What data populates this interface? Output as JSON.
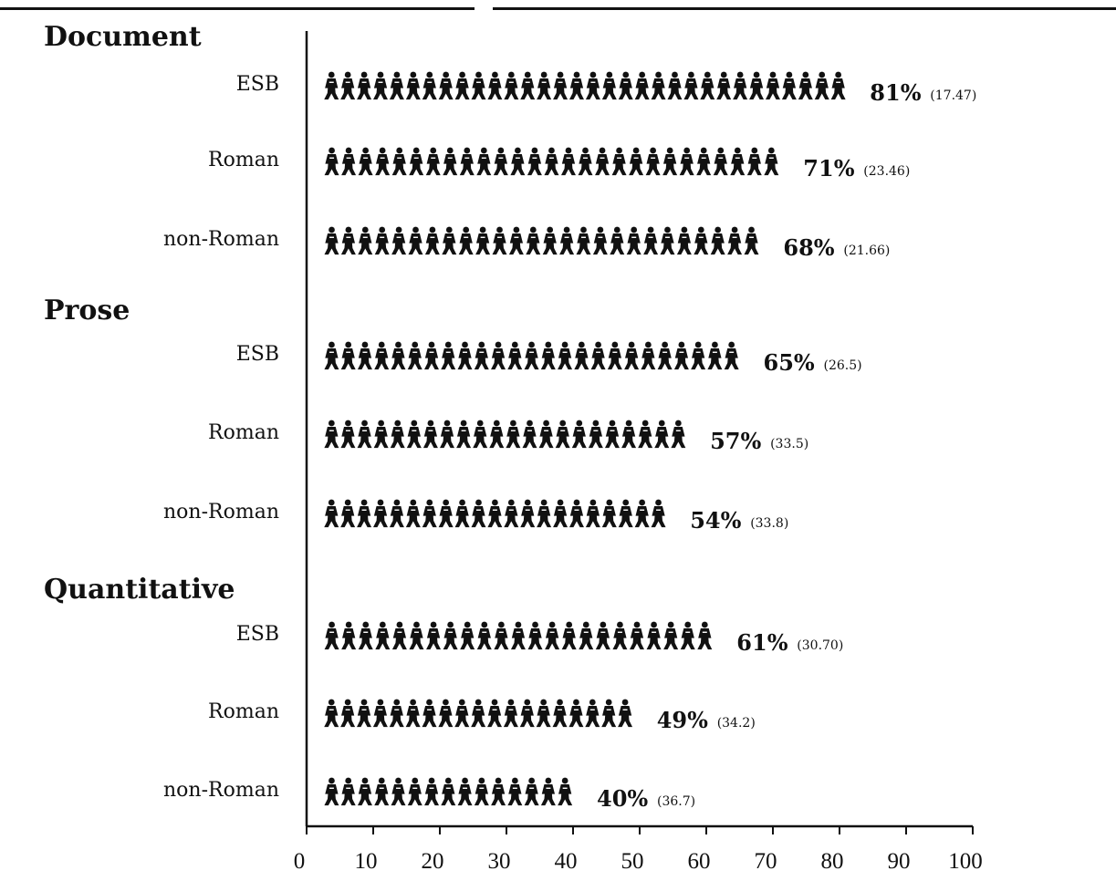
{
  "chart_data": {
    "type": "bar",
    "orientation": "horizontal",
    "mark": "pictograph",
    "groups": [
      {
        "name": "Document",
        "bars": [
          {
            "label": "ESB",
            "value": 81,
            "value_label": "81%",
            "sd_label": "(17.47)"
          },
          {
            "label": "Roman",
            "value": 71,
            "value_label": "71%",
            "sd_label": "(23.46)"
          },
          {
            "label": "non-Roman",
            "value": 68,
            "value_label": "68%",
            "sd_label": "(21.66)"
          }
        ]
      },
      {
        "name": "Prose",
        "bars": [
          {
            "label": "ESB",
            "value": 65,
            "value_label": "65%",
            "sd_label": "(26.5)"
          },
          {
            "label": "Roman",
            "value": 57,
            "value_label": "57%",
            "sd_label": "(33.5)"
          },
          {
            "label": "non-Roman",
            "value": 54,
            "value_label": "54%",
            "sd_label": "(33.8)"
          }
        ]
      },
      {
        "name": "Quantitative",
        "bars": [
          {
            "label": "ESB",
            "value": 61,
            "value_label": "61%",
            "sd_label": "(30.70)"
          },
          {
            "label": "Roman",
            "value": 49,
            "value_label": "49%",
            "sd_label": "(34.2)"
          },
          {
            "label": "non-Roman",
            "value": 40,
            "value_label": "40%",
            "sd_label": "(36.7)"
          }
        ]
      }
    ],
    "x_ticks": [
      "0",
      "10",
      "20",
      "30",
      "40",
      "50",
      "60",
      "70",
      "80",
      "90",
      "100"
    ],
    "xlim": [
      0,
      100
    ],
    "grid": false,
    "legend": false
  }
}
